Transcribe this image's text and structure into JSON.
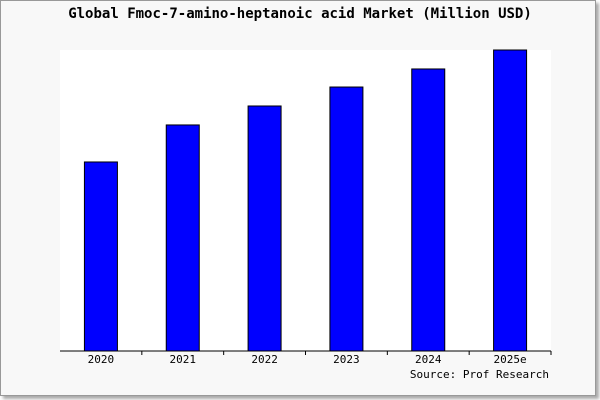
{
  "chart_data": {
    "type": "bar",
    "title": "Global Fmoc-7-amino-heptanoic acid Market (Million USD)",
    "categories": [
      "2020",
      "2021",
      "2022",
      "2023",
      "2024",
      "2025e"
    ],
    "values": [
      62.8,
      75.1,
      81.4,
      87.7,
      93.7,
      100
    ],
    "ylim": [
      0,
      100
    ],
    "grid": false,
    "bar_color": "#0000ff",
    "source": "Source: Prof Research"
  }
}
